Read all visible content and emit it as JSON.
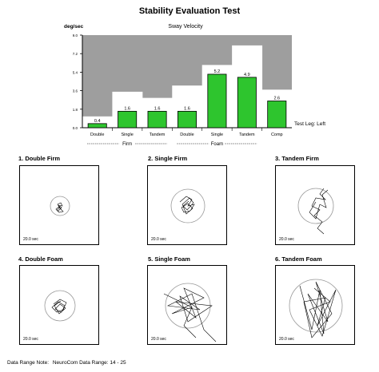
{
  "title": "Stability Evaluation Test",
  "chart_data": {
    "type": "bar",
    "title": "Sway Velocity",
    "ylabel": "deg/sec",
    "ylim": [
      0,
      9
    ],
    "yticks": [
      "0.0",
      "1.8",
      "3.6",
      "5.4",
      "7.2",
      "9.0"
    ],
    "categories": [
      "Double",
      "Single",
      "Tandem",
      "Double",
      "Single",
      "Tandem",
      "Comp"
    ],
    "values": [
      0.4,
      1.6,
      1.6,
      1.6,
      5.2,
      4.9,
      2.6
    ],
    "value_labels": [
      "0.4",
      "1.6",
      "1.6",
      "1.6",
      "5.2",
      "4.9",
      "2.6"
    ],
    "norm_upper": [
      1.1,
      3.5,
      2.9,
      4.1,
      6.1,
      8.0,
      3.7
    ],
    "groups": [
      {
        "label": "Firm",
        "categories": [
          0,
          1,
          2
        ]
      },
      {
        "label": "Foam",
        "categories": [
          3,
          4,
          5
        ]
      }
    ],
    "annotation": "Test Leg: Left",
    "bar_color": "#2ec52e",
    "abnormal_color": "#9e9e9e"
  },
  "panels": [
    {
      "title": "1. Double Firm",
      "time": "20.0 sec"
    },
    {
      "title": "2. Single Firm",
      "time": "20.0 sec"
    },
    {
      "title": "3. Tandem Firm",
      "time": "20.0 sec"
    },
    {
      "title": "4. Double Foam",
      "time": "20.0 sec"
    },
    {
      "title": "5. Single Foam",
      "time": "20.0 sec"
    },
    {
      "title": "6. Tandem Foam",
      "time": "20.0 sec"
    }
  ],
  "footer": {
    "label": "Data Range Note:",
    "value": "NeuroCom Data Range: 14 - 25"
  }
}
